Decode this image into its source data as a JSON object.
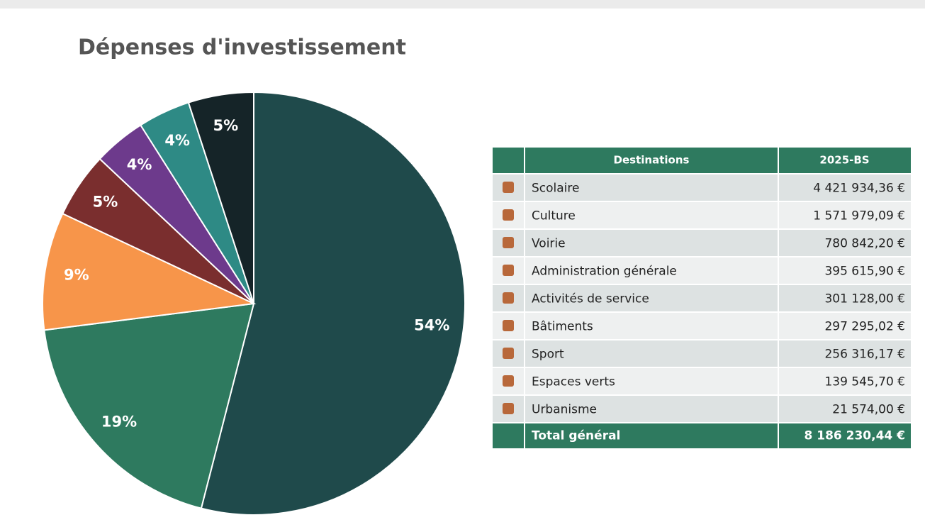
{
  "chart_data": {
    "type": "pie",
    "title": "Dépenses d'investissement",
    "values": [
      54,
      19,
      9,
      5,
      4,
      4,
      5
    ],
    "value_labels": [
      "54%",
      "19%",
      "9%",
      "5%",
      "4%",
      "4%",
      "5%"
    ],
    "colors": [
      "#1f4a4b",
      "#2e7a5f",
      "#f7954a",
      "#7a2e2e",
      "#6d3a8c",
      "#2e8a85",
      "#152428"
    ]
  },
  "table": {
    "header": [
      "Destinations",
      "2025-BS"
    ],
    "rows": [
      [
        "Scolaire",
        "4 421 934,36 €"
      ],
      [
        "Culture",
        "1 571 979,09 €"
      ],
      [
        "Voirie",
        "780 842,20 €"
      ],
      [
        "Administration générale",
        "395 615,90 €"
      ],
      [
        "Activités de service",
        "301 128,00 €"
      ],
      [
        "Bâtiments",
        "297 295,02 €"
      ],
      [
        "Sport",
        "256 316,17 €"
      ],
      [
        "Espaces verts",
        "139 545,70 €"
      ],
      [
        "Urbanisme",
        "21 574,00 €"
      ]
    ],
    "total": [
      "Total général",
      "8 186 230,44 €"
    ]
  }
}
